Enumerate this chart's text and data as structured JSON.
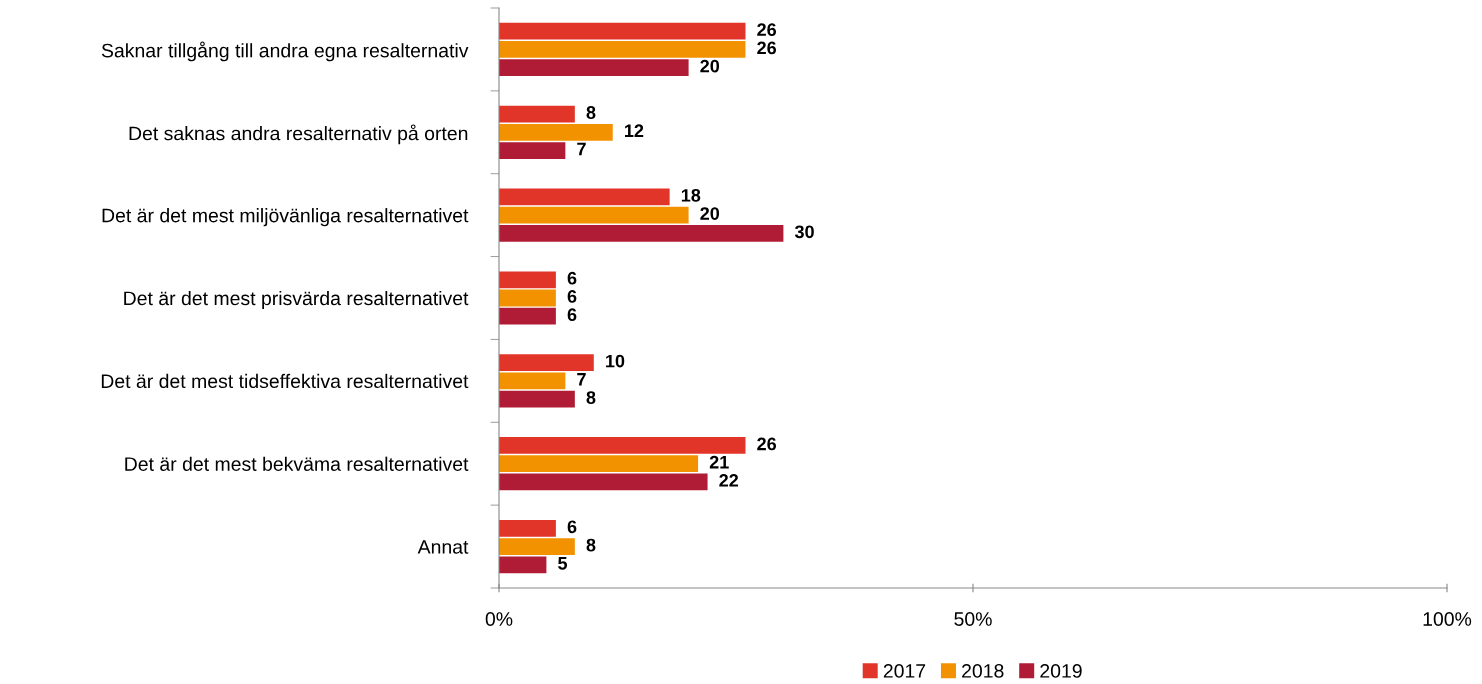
{
  "chart_data": {
    "type": "bar",
    "orientation": "horizontal",
    "categories": [
      "Saknar tillgång till andra egna resalternativ",
      "Det saknas andra resalternativ på orten",
      "Det är det mest miljövänliga resalternativet",
      "Det är det mest prisvärda resalternativet",
      "Det är det mest tidseffektiva resalternativet",
      "Det är det mest bekväma resalternativet",
      "Annat"
    ],
    "series": [
      {
        "name": "2017",
        "color": "#e2352a",
        "values": [
          26,
          8,
          18,
          6,
          10,
          26,
          6
        ]
      },
      {
        "name": "2018",
        "color": "#f39200",
        "values": [
          26,
          12,
          20,
          6,
          7,
          21,
          8
        ]
      },
      {
        "name": "2019",
        "color": "#b01c36",
        "values": [
          20,
          7,
          30,
          6,
          8,
          22,
          5
        ]
      }
    ],
    "xlim": [
      0,
      100
    ],
    "xticks": [
      {
        "value": 0,
        "label": "0%"
      },
      {
        "value": 50,
        "label": "50%"
      },
      {
        "value": 100,
        "label": "100%"
      }
    ],
    "data_labels": true,
    "legend": "bottom",
    "grid": false
  }
}
